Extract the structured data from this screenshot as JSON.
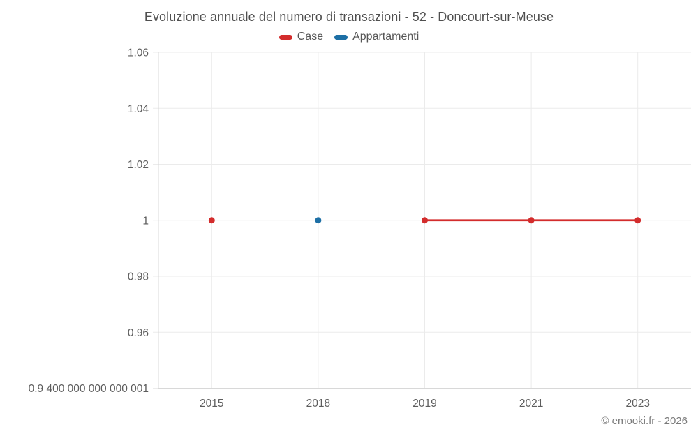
{
  "footer": {
    "credit": "© emooki.fr - 2026"
  },
  "chart_data": {
    "type": "line",
    "title": "Evoluzione annuale del numero di transazioni - 52 - Doncourt-sur-Meuse",
    "categories": [
      "2015",
      "2018",
      "2019",
      "2021",
      "2023"
    ],
    "series": [
      {
        "name": "Case",
        "color": "#d32c2c",
        "values": [
          1,
          null,
          1,
          1,
          1
        ]
      },
      {
        "name": "Appartamenti",
        "color": "#1d6fa5",
        "values": [
          null,
          1,
          null,
          null,
          null
        ]
      }
    ],
    "yticks": [
      {
        "label": "1.06",
        "value": 1.06
      },
      {
        "label": "1.04",
        "value": 1.04
      },
      {
        "label": "1.02",
        "value": 1.02
      },
      {
        "label": "1",
        "value": 1
      },
      {
        "label": "0.98",
        "value": 0.98
      },
      {
        "label": "0.96",
        "value": 0.96
      },
      {
        "label": "0.9 400 000 000 000 001",
        "value": 0.94
      }
    ],
    "ylim": [
      0.94,
      1.06
    ],
    "grid": true,
    "legend_position": "top",
    "xlabel": "",
    "ylabel": ""
  }
}
